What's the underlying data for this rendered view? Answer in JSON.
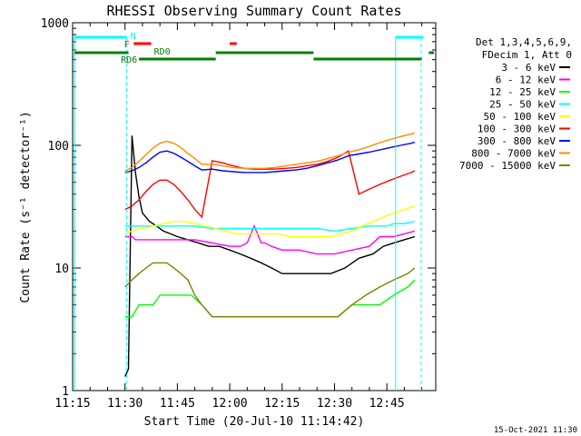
{
  "chart_data": {
    "type": "line",
    "title": "RHESSI Observing Summary Count Rates",
    "xlabel": "Start Time (20-Jul-10 11:14:42)",
    "ylabel": "Count Rate (s⁻¹ detector⁻¹)",
    "x_ticks": [
      "11:15",
      "11:30",
      "11:45",
      "12:00",
      "12:15",
      "12:30",
      "12:45"
    ],
    "x_range_minutes": [
      0,
      104
    ],
    "y_scale": "log",
    "ylim": [
      1,
      1000
    ],
    "y_ticks": [
      "1",
      "10",
      "100",
      "1000"
    ],
    "legend_header": [
      "Det 1,3,4,5,6,9,",
      "FDecim 1, Att 0"
    ],
    "series": [
      {
        "name": "3 - 6 keV",
        "color": "#000000",
        "x": [
          15,
          16,
          17,
          18,
          19,
          20,
          22,
          24,
          26,
          28,
          30,
          33,
          36,
          39,
          42,
          45,
          48,
          51,
          54,
          57,
          60,
          63,
          66,
          70,
          74,
          78,
          82,
          86,
          89,
          92,
          95,
          98
        ],
        "values": [
          1.3,
          1.5,
          120,
          60,
          38,
          28,
          24,
          22,
          20,
          19,
          18,
          17,
          16,
          15,
          15,
          14,
          13,
          12,
          11,
          10,
          9,
          9,
          9,
          9,
          9,
          10,
          12,
          13,
          15,
          16,
          17,
          18
        ]
      },
      {
        "name": "6 - 12 keV",
        "color": "#ff00ff",
        "x": [
          15,
          16,
          17,
          18,
          20,
          25,
          30,
          35,
          40,
          45,
          48,
          50,
          52,
          54,
          55,
          57,
          60,
          65,
          70,
          75,
          80,
          85,
          88,
          90,
          92,
          95,
          98
        ],
        "values": [
          18,
          18,
          18,
          17,
          17,
          17,
          17,
          17,
          16,
          15,
          15,
          16,
          22,
          16,
          16,
          15,
          14,
          14,
          13,
          13,
          14,
          15,
          18,
          18,
          18,
          19,
          20
        ]
      },
      {
        "name": "12 - 25 keV",
        "color": "#00ff00",
        "x": [
          15,
          17,
          19,
          21,
          23,
          25,
          28,
          31,
          34,
          37,
          40,
          44,
          48,
          52,
          56,
          60,
          64,
          68,
          72,
          76,
          80,
          84,
          88,
          92,
          96,
          98
        ],
        "values": [
          4,
          4,
          5,
          5,
          5,
          6,
          6,
          6,
          6,
          5,
          4,
          4,
          4,
          4,
          4,
          4,
          4,
          4,
          4,
          4,
          5,
          5,
          5,
          6,
          7,
          8
        ]
      },
      {
        "name": "25 - 50 keV",
        "color": "#00ffff",
        "x": [
          15,
          17,
          20,
          25,
          30,
          35,
          40,
          45,
          50,
          55,
          60,
          65,
          70,
          75,
          80,
          85,
          88,
          90,
          92,
          95,
          98
        ],
        "values": [
          22,
          22,
          22,
          22,
          22,
          22,
          21,
          21,
          21,
          21,
          21,
          21,
          21,
          20,
          21,
          22,
          22,
          22,
          23,
          23,
          24
        ]
      },
      {
        "name": "50 - 100 keV",
        "color": "#ffff00",
        "x": [
          15,
          17,
          20,
          23,
          26,
          29,
          32,
          35,
          38,
          41,
          44,
          47,
          50,
          53,
          56,
          59,
          62,
          65,
          68,
          71,
          74,
          77,
          80,
          83,
          86,
          89,
          92,
          95,
          98
        ],
        "values": [
          19,
          20,
          21,
          22,
          23,
          24,
          24,
          23,
          22,
          21,
          20,
          19,
          19,
          19,
          19,
          19,
          18,
          18,
          18,
          18,
          18,
          19,
          20,
          22,
          24,
          26,
          28,
          30,
          32
        ]
      },
      {
        "name": "100 - 300 keV",
        "color": "#ff0000",
        "x": [
          15,
          17,
          19,
          21,
          23,
          25,
          27,
          29,
          31,
          33,
          35,
          37,
          40,
          43,
          46,
          49,
          52,
          55,
          58,
          61,
          64,
          67,
          70,
          73,
          76,
          79,
          82,
          85,
          88,
          91,
          94,
          97,
          98
        ],
        "values": [
          30,
          32,
          36,
          42,
          48,
          52,
          52,
          48,
          42,
          36,
          30,
          26,
          75,
          72,
          68,
          65,
          64,
          64,
          64,
          65,
          66,
          68,
          70,
          74,
          80,
          90,
          40,
          44,
          48,
          52,
          56,
          60,
          62
        ]
      },
      {
        "name": "300 - 800 keV",
        "color": "#0000ff",
        "x": [
          15,
          17,
          19,
          21,
          23,
          25,
          27,
          29,
          31,
          33,
          35,
          37,
          40,
          43,
          46,
          49,
          52,
          55,
          58,
          61,
          64,
          67,
          70,
          73,
          76,
          79,
          82,
          85,
          88,
          91,
          94,
          97,
          98
        ],
        "values": [
          60,
          62,
          66,
          72,
          80,
          88,
          90,
          86,
          80,
          74,
          68,
          63,
          64,
          62,
          61,
          60,
          60,
          60,
          61,
          62,
          63,
          65,
          68,
          72,
          76,
          82,
          85,
          88,
          92,
          96,
          100,
          104,
          106
        ]
      },
      {
        "name": "800 - 7000 keV",
        "color": "#ff8c00",
        "x": [
          15,
          17,
          19,
          21,
          23,
          25,
          27,
          29,
          31,
          33,
          35,
          37,
          40,
          43,
          46,
          49,
          52,
          55,
          58,
          61,
          64,
          67,
          70,
          73,
          76,
          79,
          82,
          85,
          88,
          91,
          94,
          97,
          98
        ],
        "values": [
          62,
          66,
          74,
          84,
          95,
          104,
          108,
          104,
          96,
          86,
          78,
          70,
          70,
          68,
          66,
          65,
          65,
          65,
          66,
          68,
          70,
          72,
          74,
          78,
          82,
          88,
          92,
          98,
          105,
          112,
          118,
          124,
          126
        ]
      },
      {
        "name": "7000 - 15000 keV",
        "color": "#808000",
        "x": [
          15,
          17,
          19,
          21,
          23,
          25,
          27,
          29,
          31,
          33,
          35,
          37,
          40,
          44,
          48,
          52,
          56,
          60,
          64,
          68,
          72,
          76,
          80,
          84,
          88,
          92,
          96,
          98
        ],
        "values": [
          7,
          8,
          9,
          10,
          11,
          11,
          11,
          10,
          9,
          8,
          6,
          5,
          4,
          4,
          4,
          4,
          4,
          4,
          4,
          4,
          4,
          4,
          5,
          6,
          7,
          8,
          9,
          10
        ]
      }
    ],
    "flags": {
      "N_label": "N",
      "F_label": "F",
      "RD0_label": "RD0",
      "RD6_label": "RD6"
    }
  },
  "footer_date": "15-Oct-2021 11:30"
}
